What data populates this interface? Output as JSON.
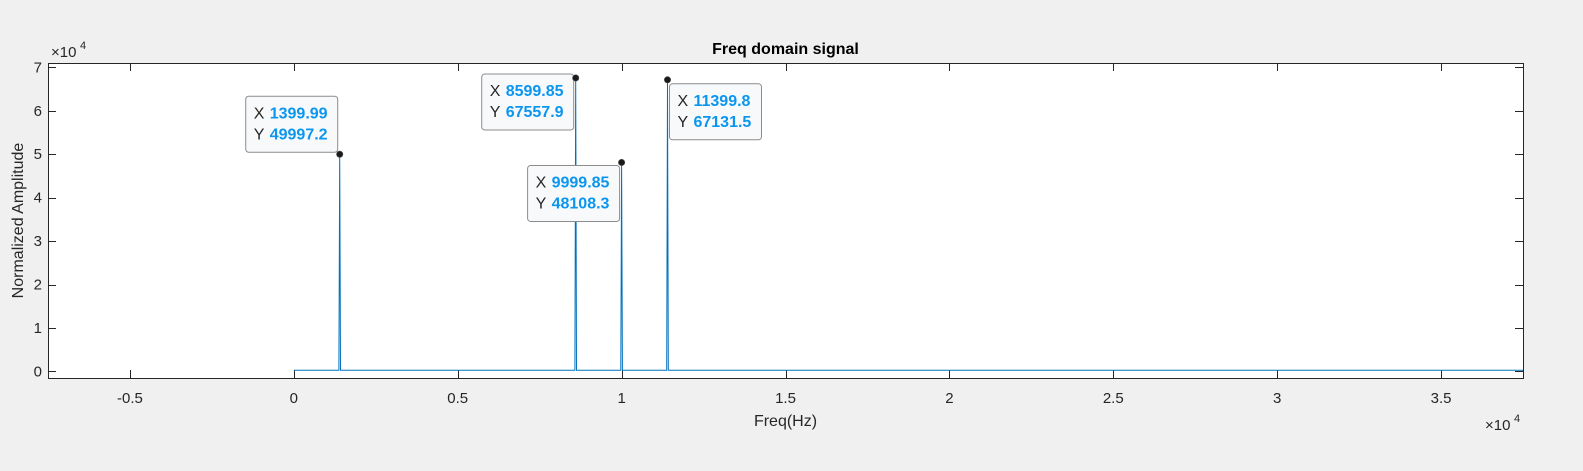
{
  "chart_data": {
    "type": "line",
    "title": "Freq domain signal",
    "xlabel": "Freq(Hz)",
    "ylabel": "Normalized Amplitude",
    "x_exponent_label": "×10",
    "x_exponent": "4",
    "y_exponent_label": "×10",
    "y_exponent": "4",
    "xlim": [
      -7500,
      37500
    ],
    "ylim": [
      -1500,
      71000
    ],
    "x_ticks": [
      -5000,
      0,
      5000,
      10000,
      15000,
      20000,
      25000,
      30000,
      35000
    ],
    "x_tick_labels": [
      "-0.5",
      "0",
      "0.5",
      "1",
      "1.5",
      "2",
      "2.5",
      "3",
      "3.5"
    ],
    "y_ticks": [
      0,
      10000,
      20000,
      30000,
      40000,
      50000,
      60000,
      70000
    ],
    "y_tick_labels": [
      "0",
      "1",
      "2",
      "3",
      "4",
      "5",
      "6",
      "7"
    ],
    "grid": false,
    "series": [
      {
        "x_range": [
          0,
          37500
        ],
        "baseline": 300,
        "peaks": [
          {
            "x": 1399.99,
            "y": 49997.2
          },
          {
            "x": 8599.85,
            "y": 67557.9
          },
          {
            "x": 9999.85,
            "y": 48108.3
          },
          {
            "x": 11399.8,
            "y": 67131.5
          }
        ]
      }
    ],
    "datatips": [
      {
        "x_key": "X",
        "x_value": "1399.99",
        "y_key": "Y",
        "y_value": "49997.2",
        "x": 1399.99,
        "y": 49997.2
      },
      {
        "x_key": "X",
        "x_value": "8599.85",
        "y_key": "Y",
        "y_value": "67557.9",
        "x": 8599.85,
        "y": 67557.9
      },
      {
        "x_key": "X",
        "x_value": "9999.85",
        "y_key": "Y",
        "y_value": "48108.3",
        "x": 9999.85,
        "y": 48108.3
      },
      {
        "x_key": "X",
        "x_value": "11399.8",
        "y_key": "Y",
        "y_value": "67131.5",
        "x": 11399.8,
        "y": 67131.5
      }
    ],
    "colors": {
      "line": "#0072bd",
      "datatip_value": "#0a96ef",
      "marker": "#1a1a1a"
    }
  }
}
